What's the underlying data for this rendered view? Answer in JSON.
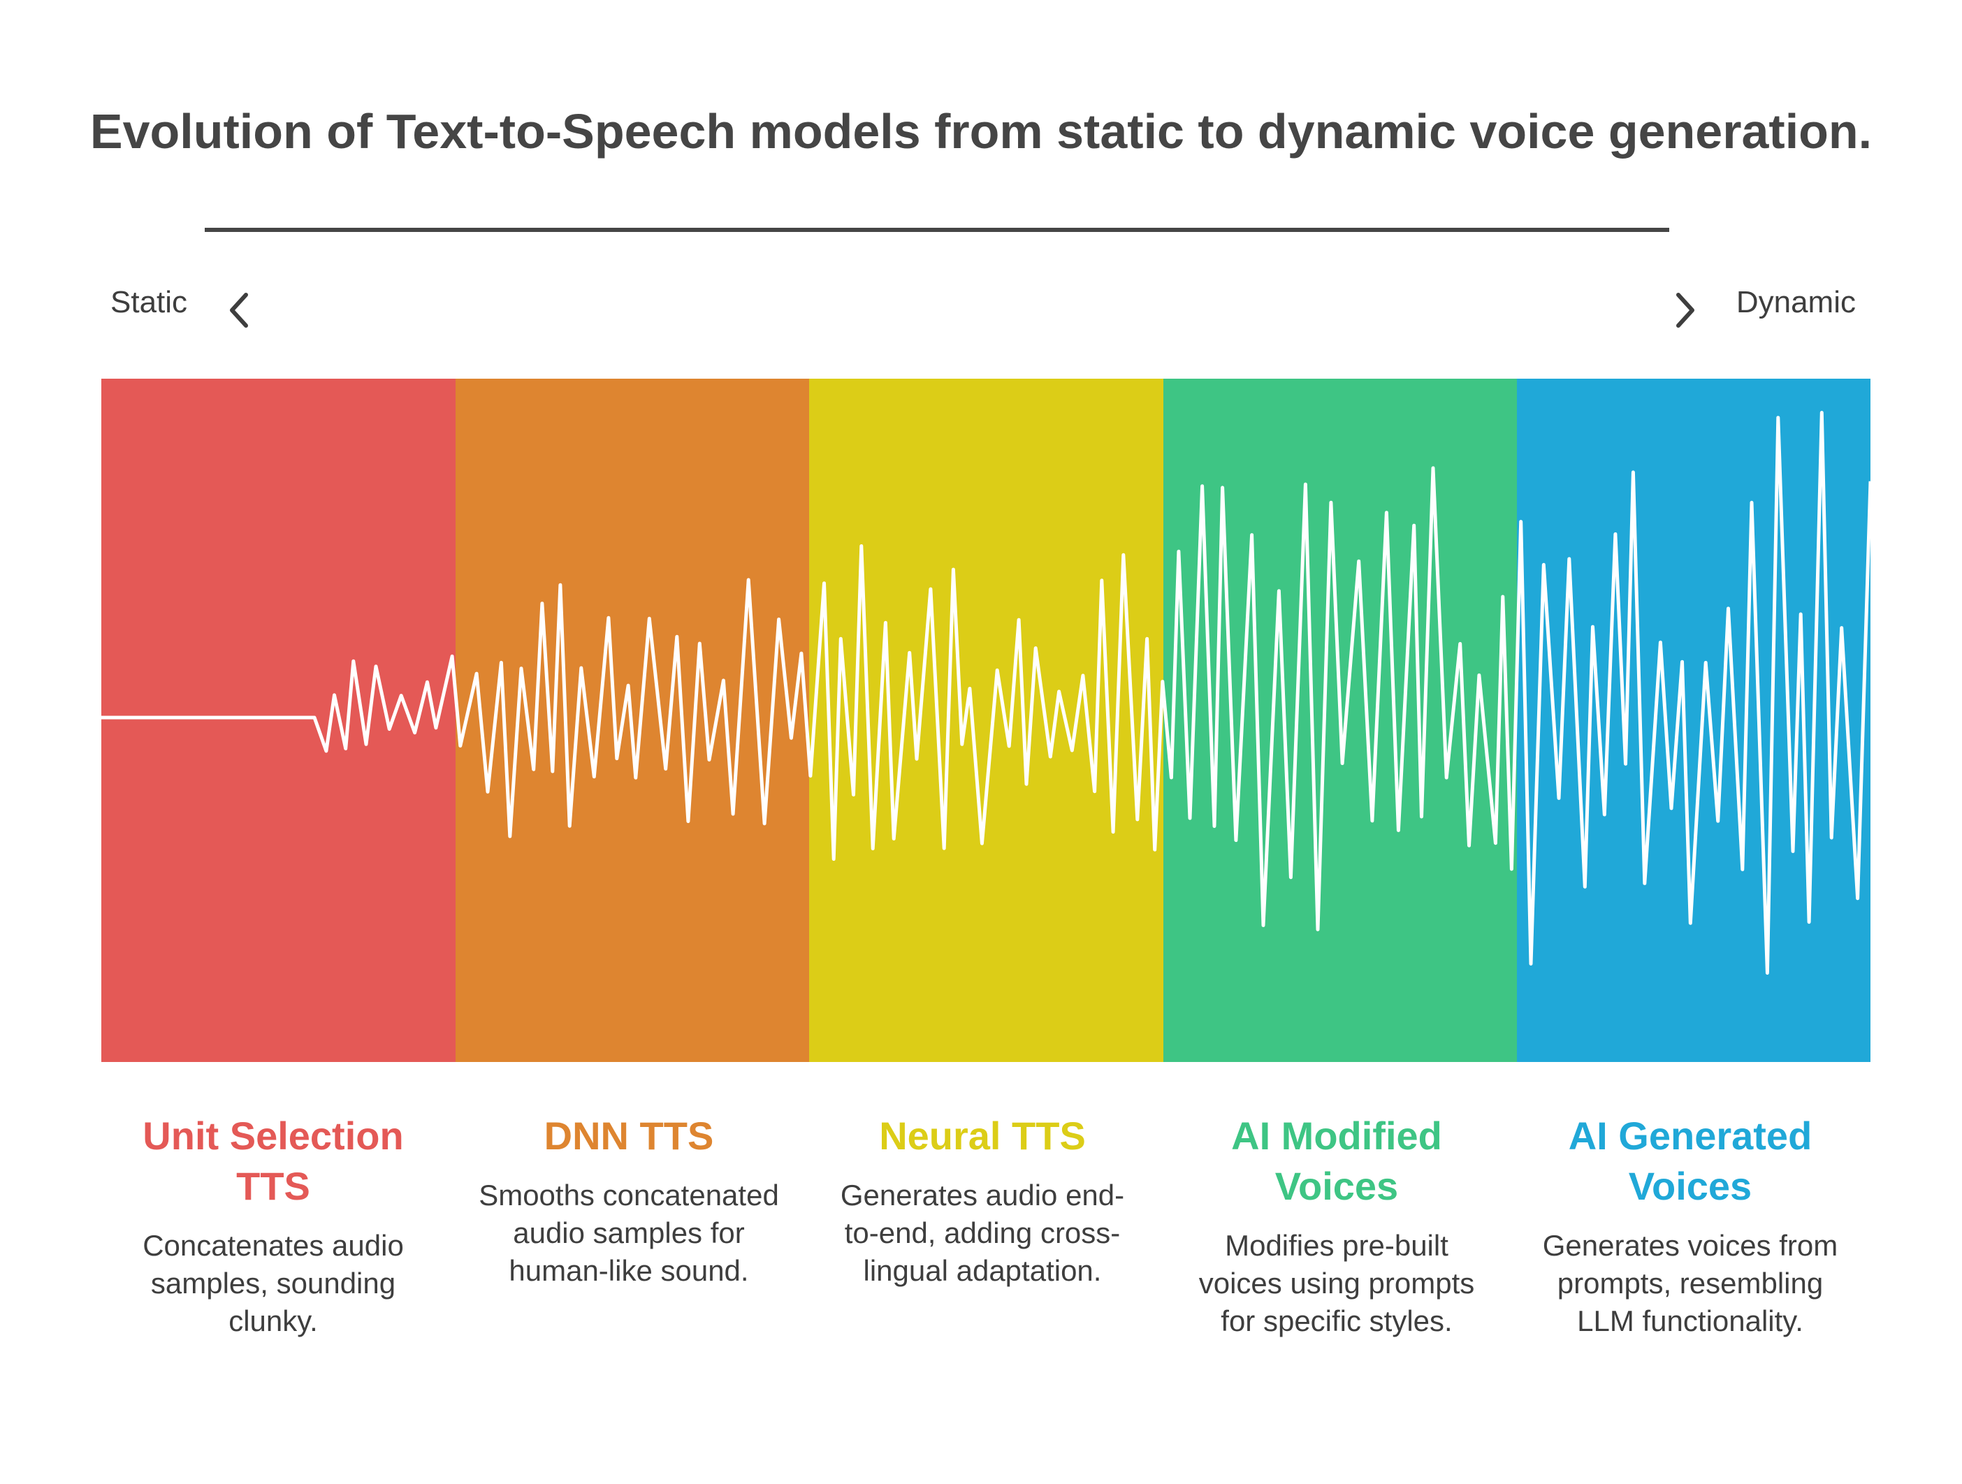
{
  "title": "Evolution of Text-to-Speech models from static to dynamic voice generation.",
  "axis": {
    "left_label": "Static",
    "right_label": "Dynamic",
    "left_icon": "chevron-left-icon",
    "right_icon": "chevron-right-icon"
  },
  "colors": {
    "title": "#454545",
    "text": "#3e3e3e",
    "wave": "#ffffff"
  },
  "stages": [
    {
      "title_line1": "Unit Selection",
      "title_line2": "TTS",
      "description": "Concatenates audio samples, sounding clunky.",
      "color": "#e45956",
      "wave_amplitude": 0.2
    },
    {
      "title_line1": "DNN TTS",
      "title_line2": "",
      "description": "Smooths concatenated audio samples for human-like sound.",
      "color": "#de8530",
      "wave_amplitude": 0.45
    },
    {
      "title_line1": "Neural TTS",
      "title_line2": "",
      "description": "Generates audio end-to-end, adding cross-lingual adaptation.",
      "color": "#dccd17",
      "wave_amplitude": 0.55
    },
    {
      "title_line1": "AI Modified",
      "title_line2": "Voices",
      "description": "Modifies pre-built voices using prompts for specific styles.",
      "color": "#3ec584",
      "wave_amplitude": 0.8
    },
    {
      "title_line1": "AI Generated",
      "title_line2": "Voices",
      "description": "Generates voices from prompts, resembling LLM functionality.",
      "color": "#20a8d8",
      "wave_amplitude": 1.0
    }
  ]
}
